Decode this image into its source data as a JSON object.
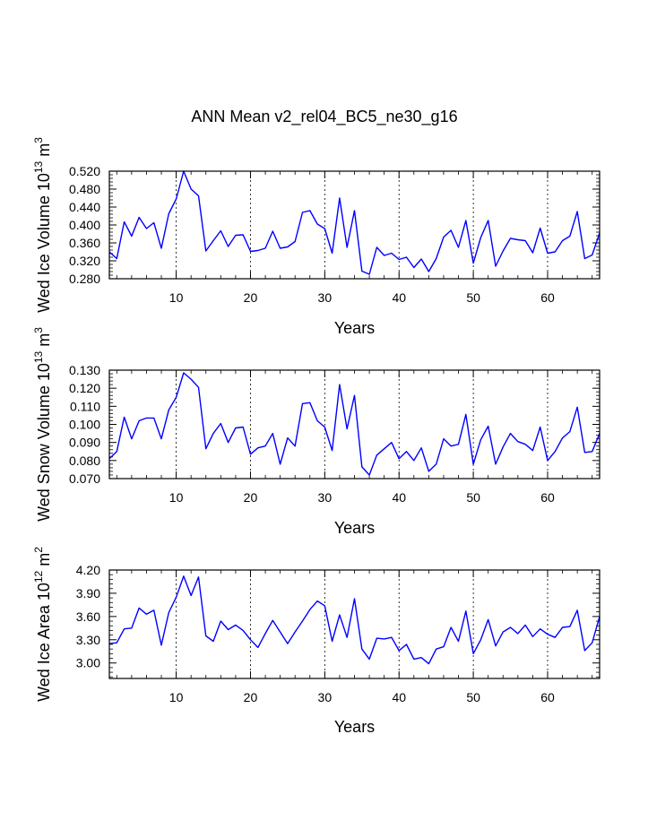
{
  "figure": {
    "title": "ANN Mean v2_rel04_BC5_ne30_g16",
    "line_color": "#0000ff"
  },
  "chart_data": [
    {
      "type": "line",
      "xlabel": "Years",
      "ylabel": "Wed Ice Volume 10",
      "ylabel_exp": "13",
      "ylabel_unit": " m",
      "ylabel_unit_exp": "3",
      "xlim": [
        1,
        67
      ],
      "ylim": [
        0.28,
        0.52
      ],
      "yticks": [
        0.28,
        0.32,
        0.36,
        0.4,
        0.44,
        0.48,
        0.52
      ],
      "ytick_labels": [
        "0.280",
        "0.320",
        "0.360",
        "0.400",
        "0.440",
        "0.480",
        "0.520"
      ],
      "xticks": [
        10,
        20,
        30,
        40,
        50,
        60
      ],
      "xtick_labels": [
        "10",
        "20",
        "30",
        "40",
        "50",
        "60"
      ],
      "grid_x": [
        10,
        20,
        30,
        40,
        50,
        60
      ],
      "series": [
        {
          "name": "Wed Ice Volume",
          "x": [
            1,
            2,
            3,
            4,
            5,
            6,
            7,
            8,
            9,
            10,
            11,
            12,
            13,
            14,
            15,
            16,
            17,
            18,
            19,
            20,
            21,
            22,
            23,
            24,
            25,
            26,
            27,
            28,
            29,
            30,
            31,
            32,
            33,
            34,
            35,
            36,
            37,
            38,
            39,
            40,
            41,
            42,
            43,
            44,
            45,
            46,
            47,
            48,
            49,
            50,
            51,
            52,
            53,
            54,
            55,
            56,
            57,
            58,
            59,
            60,
            61,
            62,
            63,
            64,
            65,
            66,
            67
          ],
          "values": [
            0.34,
            0.325,
            0.407,
            0.375,
            0.417,
            0.392,
            0.405,
            0.348,
            0.425,
            0.458,
            0.52,
            0.48,
            0.465,
            0.342,
            0.365,
            0.387,
            0.352,
            0.377,
            0.378,
            0.341,
            0.343,
            0.348,
            0.386,
            0.348,
            0.351,
            0.363,
            0.428,
            0.432,
            0.402,
            0.392,
            0.337,
            0.46,
            0.35,
            0.432,
            0.297,
            0.29,
            0.35,
            0.332,
            0.337,
            0.323,
            0.328,
            0.305,
            0.324,
            0.296,
            0.325,
            0.373,
            0.388,
            0.35,
            0.41,
            0.315,
            0.372,
            0.41,
            0.308,
            0.342,
            0.37,
            0.367,
            0.365,
            0.338,
            0.393,
            0.337,
            0.34,
            0.365,
            0.375,
            0.43,
            0.325,
            0.333,
            0.382
          ]
        }
      ]
    },
    {
      "type": "line",
      "xlabel": "Years",
      "ylabel": "Wed Snow Volume 10",
      "ylabel_exp": "13",
      "ylabel_unit": " m",
      "ylabel_unit_exp": "3",
      "xlim": [
        1,
        67
      ],
      "ylim": [
        0.07,
        0.13
      ],
      "yticks": [
        0.07,
        0.08,
        0.09,
        0.1,
        0.11,
        0.12,
        0.13
      ],
      "ytick_labels": [
        "0.070",
        "0.080",
        "0.090",
        "0.100",
        "0.110",
        "0.120",
        "0.130"
      ],
      "xticks": [
        10,
        20,
        30,
        40,
        50,
        60
      ],
      "xtick_labels": [
        "10",
        "20",
        "30",
        "40",
        "50",
        "60"
      ],
      "grid_x": [
        10,
        20,
        30,
        40,
        50,
        60
      ],
      "series": [
        {
          "name": "Wed Snow Volume",
          "x": [
            1,
            2,
            3,
            4,
            5,
            6,
            7,
            8,
            9,
            10,
            11,
            12,
            13,
            14,
            15,
            16,
            17,
            18,
            19,
            20,
            21,
            22,
            23,
            24,
            25,
            26,
            27,
            28,
            29,
            30,
            31,
            32,
            33,
            34,
            35,
            36,
            37,
            38,
            39,
            40,
            41,
            42,
            43,
            44,
            45,
            46,
            47,
            48,
            49,
            50,
            51,
            52,
            53,
            54,
            55,
            56,
            57,
            58,
            59,
            60,
            61,
            62,
            63,
            64,
            65,
            66,
            67
          ],
          "values": [
            0.081,
            0.085,
            0.104,
            0.092,
            0.102,
            0.1035,
            0.1035,
            0.092,
            0.108,
            0.115,
            0.1285,
            0.125,
            0.1205,
            0.0865,
            0.095,
            0.1005,
            0.09,
            0.098,
            0.0985,
            0.0835,
            0.087,
            0.088,
            0.095,
            0.078,
            0.0925,
            0.088,
            0.1115,
            0.112,
            0.102,
            0.0985,
            0.0855,
            0.122,
            0.0975,
            0.116,
            0.0765,
            0.072,
            0.083,
            0.0865,
            0.09,
            0.081,
            0.085,
            0.08,
            0.087,
            0.074,
            0.078,
            0.092,
            0.088,
            0.089,
            0.1055,
            0.078,
            0.0915,
            0.099,
            0.078,
            0.0875,
            0.095,
            0.0905,
            0.089,
            0.0855,
            0.0985,
            0.08,
            0.085,
            0.0925,
            0.096,
            0.1095,
            0.0845,
            0.085,
            0.095
          ]
        }
      ]
    },
    {
      "type": "line",
      "xlabel": "Years",
      "ylabel": "Wed Ice Area 10",
      "ylabel_exp": "12",
      "ylabel_unit": " m",
      "ylabel_unit_exp": "2",
      "xlim": [
        1,
        67
      ],
      "ylim": [
        2.8,
        4.2
      ],
      "yticks": [
        3.0,
        3.3,
        3.6,
        3.9,
        4.2
      ],
      "ytick_labels": [
        "3.00",
        "3.30",
        "3.60",
        "3.90",
        "4.20"
      ],
      "xticks": [
        10,
        20,
        30,
        40,
        50,
        60
      ],
      "xtick_labels": [
        "10",
        "20",
        "30",
        "40",
        "50",
        "60"
      ],
      "grid_x": [
        10,
        20,
        30,
        40,
        50,
        60
      ],
      "series": [
        {
          "name": "Wed Ice Area",
          "x": [
            1,
            2,
            3,
            4,
            5,
            6,
            7,
            8,
            9,
            10,
            11,
            12,
            13,
            14,
            15,
            16,
            17,
            18,
            19,
            20,
            21,
            22,
            23,
            24,
            25,
            26,
            27,
            28,
            29,
            30,
            31,
            32,
            33,
            34,
            35,
            36,
            37,
            38,
            39,
            40,
            41,
            42,
            43,
            44,
            45,
            46,
            47,
            48,
            49,
            50,
            51,
            52,
            53,
            54,
            55,
            56,
            57,
            58,
            59,
            60,
            61,
            62,
            63,
            64,
            65,
            66,
            67
          ],
          "values": [
            3.25,
            3.26,
            3.44,
            3.45,
            3.71,
            3.63,
            3.68,
            3.23,
            3.65,
            3.85,
            4.12,
            3.87,
            4.11,
            3.35,
            3.28,
            3.54,
            3.43,
            3.49,
            3.42,
            3.3,
            3.2,
            3.38,
            3.55,
            3.4,
            3.25,
            3.4,
            3.54,
            3.69,
            3.8,
            3.74,
            3.28,
            3.62,
            3.33,
            3.83,
            3.18,
            3.05,
            3.32,
            3.31,
            3.33,
            3.16,
            3.24,
            3.05,
            3.07,
            2.99,
            3.18,
            3.21,
            3.46,
            3.28,
            3.67,
            3.12,
            3.3,
            3.56,
            3.22,
            3.4,
            3.46,
            3.38,
            3.49,
            3.34,
            3.44,
            3.37,
            3.33,
            3.46,
            3.47,
            3.68,
            3.16,
            3.26,
            3.6
          ]
        }
      ]
    }
  ]
}
